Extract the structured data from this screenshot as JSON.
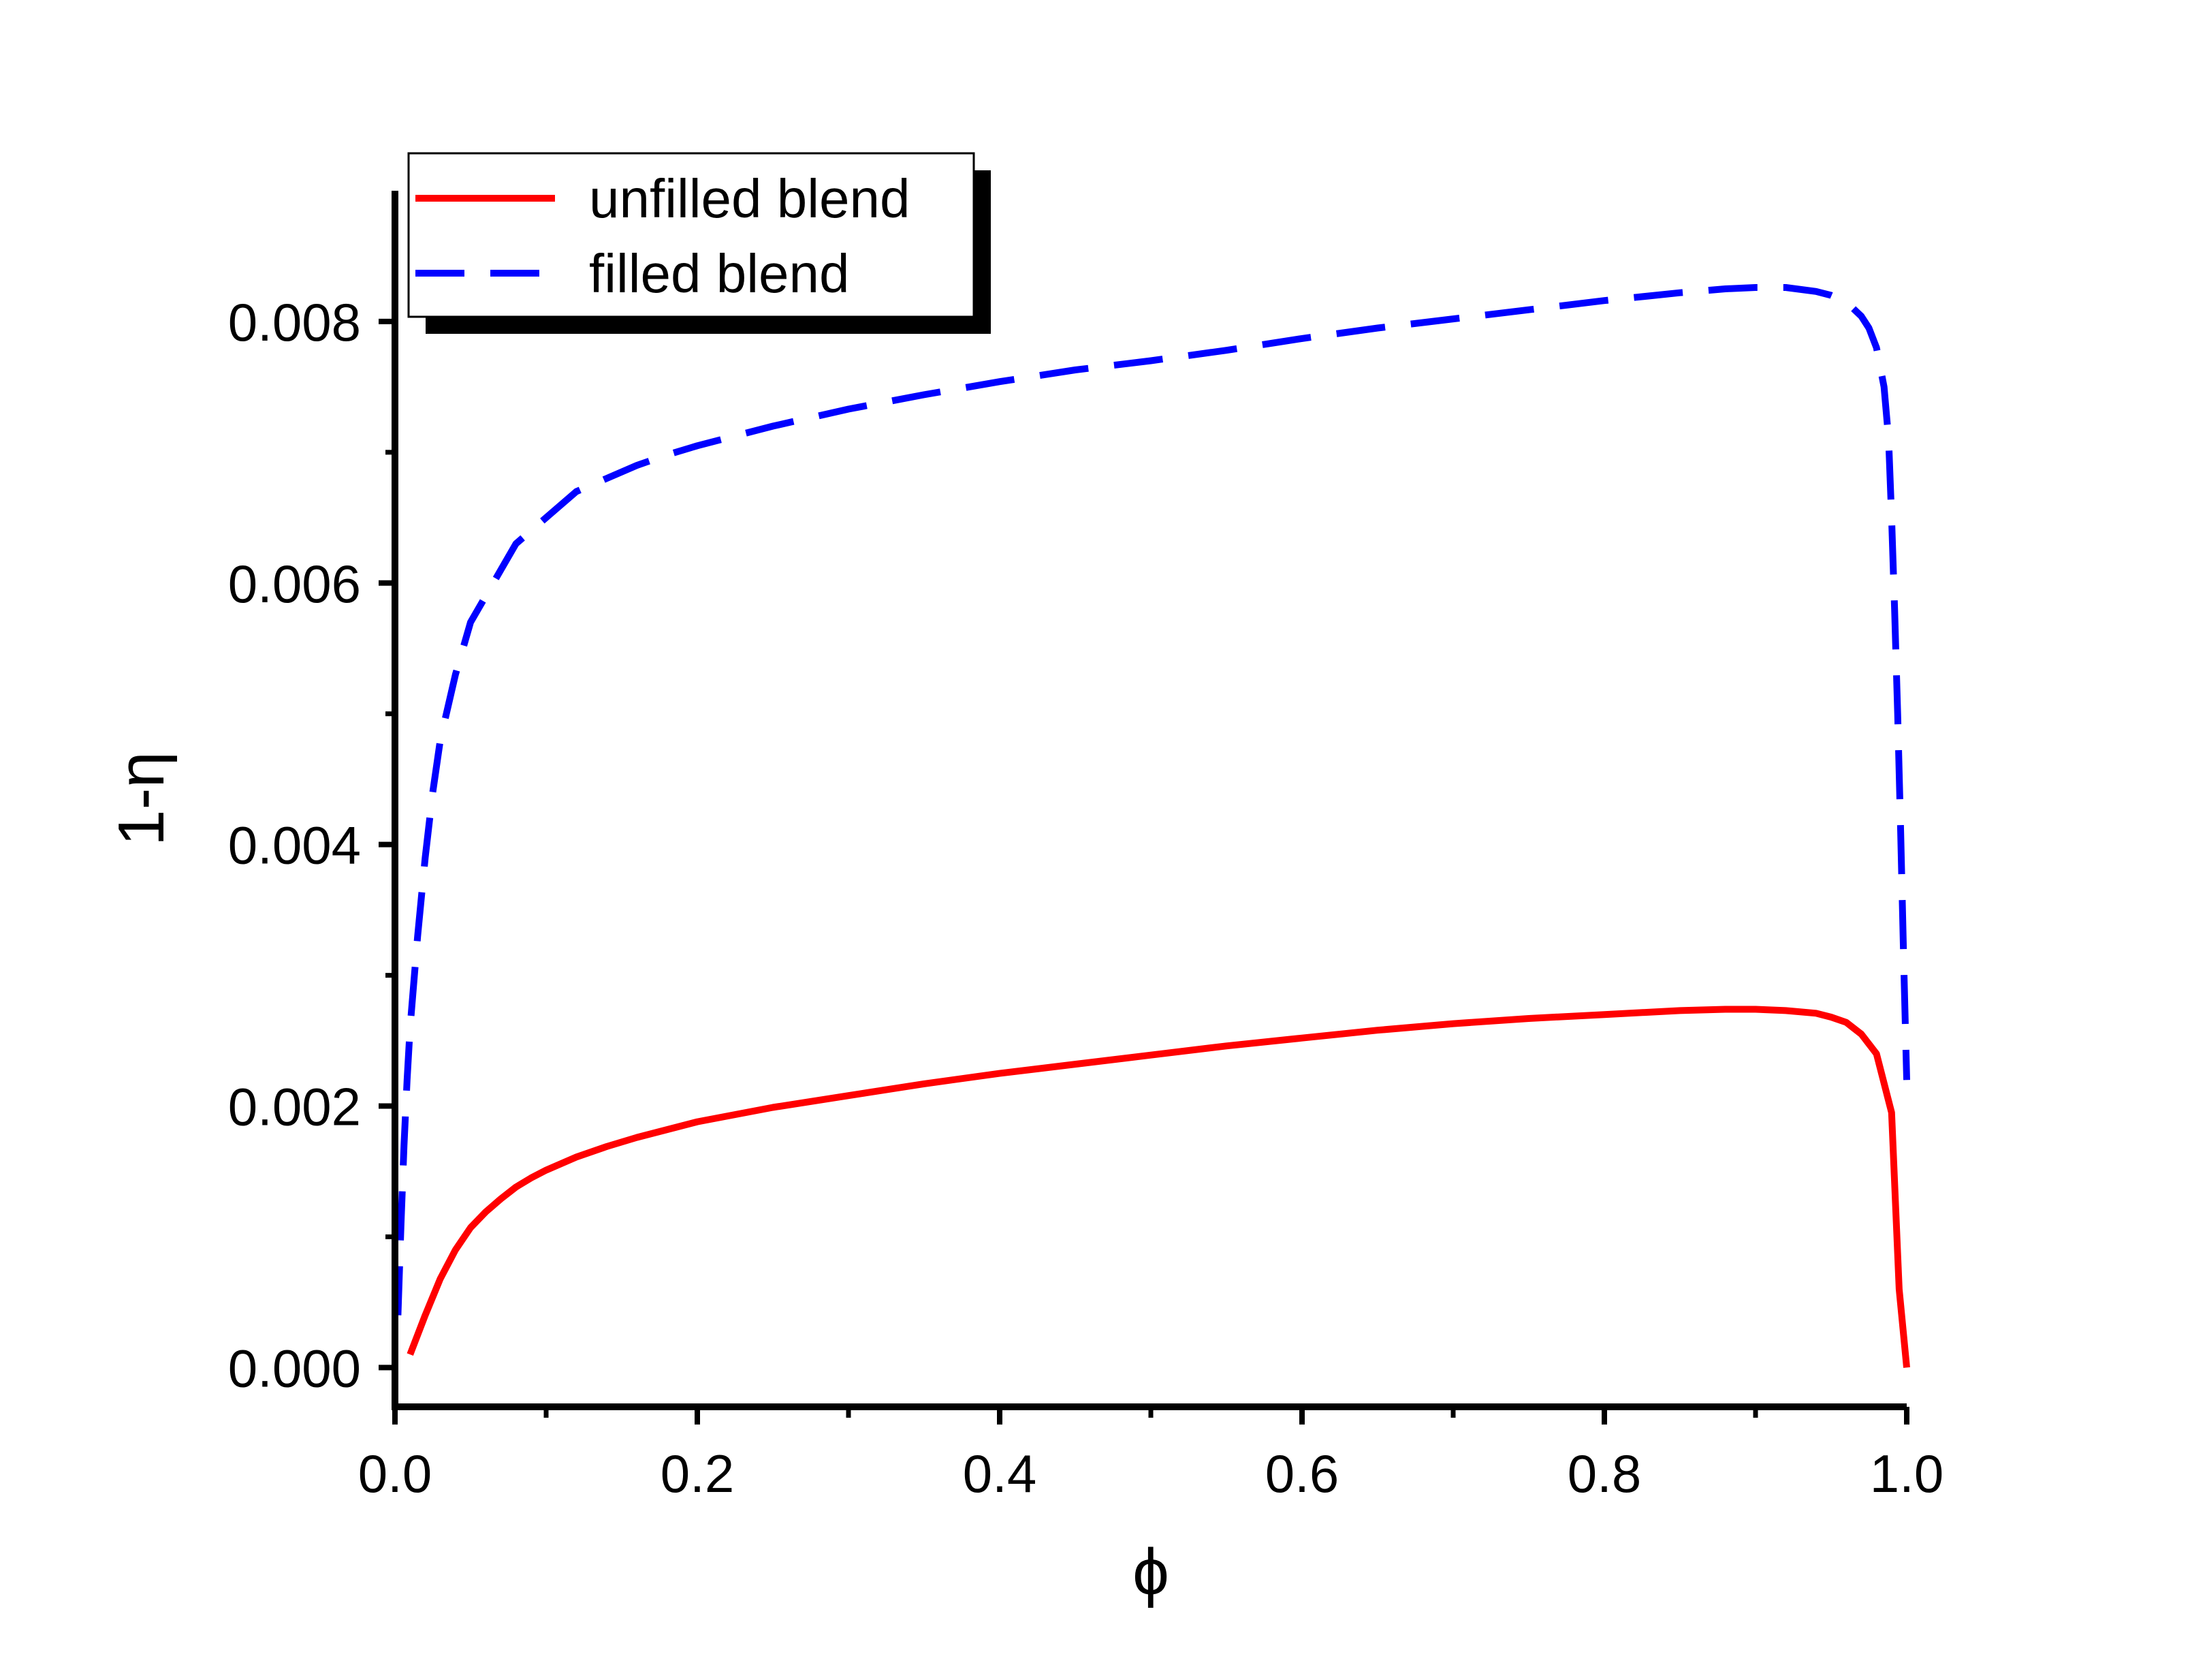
{
  "chart_data": {
    "type": "line",
    "title": "",
    "xlabel": "ϕ",
    "ylabel": "1-η",
    "xlim": [
      0.0,
      1.0
    ],
    "ylim": [
      -0.0003,
      0.009
    ],
    "xticks": [
      0.0,
      0.2,
      0.4,
      0.6,
      0.8,
      1.0
    ],
    "xtick_labels": [
      "0.0",
      "0.2",
      "0.4",
      "0.6",
      "0.8",
      "1.0"
    ],
    "yticks": [
      0.0,
      0.002,
      0.004,
      0.006,
      0.008
    ],
    "ytick_labels": [
      "0.000",
      "0.002",
      "0.004",
      "0.006",
      "0.008"
    ],
    "grid": false,
    "legend_position": "top-left",
    "series": [
      {
        "name": "unfilled blend",
        "color": "#ff0000",
        "style": "solid",
        "x": [
          0.01,
          0.02,
          0.03,
          0.04,
          0.05,
          0.06,
          0.07,
          0.08,
          0.09,
          0.1,
          0.12,
          0.14,
          0.16,
          0.18,
          0.2,
          0.25,
          0.3,
          0.35,
          0.4,
          0.45,
          0.5,
          0.55,
          0.6,
          0.65,
          0.7,
          0.75,
          0.8,
          0.85,
          0.88,
          0.9,
          0.92,
          0.94,
          0.95,
          0.96,
          0.97,
          0.98,
          0.99,
          0.995,
          1.0
        ],
        "y": [
          0.0001,
          0.0004,
          0.00068,
          0.0009,
          0.00107,
          0.00119,
          0.00129,
          0.00138,
          0.00145,
          0.00151,
          0.00161,
          0.00169,
          0.00176,
          0.00182,
          0.00188,
          0.00199,
          0.00208,
          0.00217,
          0.00225,
          0.00232,
          0.00239,
          0.00246,
          0.00252,
          0.00258,
          0.00263,
          0.00267,
          0.0027,
          0.00273,
          0.00274,
          0.00274,
          0.00273,
          0.00271,
          0.00268,
          0.00264,
          0.00255,
          0.0024,
          0.00195,
          0.0006,
          0.0
        ]
      },
      {
        "name": "filled blend",
        "color": "#0000ff",
        "style": "dashed",
        "x": [
          0.002,
          0.004,
          0.006,
          0.008,
          0.01,
          0.015,
          0.02,
          0.025,
          0.03,
          0.04,
          0.05,
          0.06,
          0.07,
          0.08,
          0.09,
          0.1,
          0.12,
          0.14,
          0.16,
          0.18,
          0.2,
          0.25,
          0.3,
          0.35,
          0.4,
          0.45,
          0.5,
          0.55,
          0.6,
          0.65,
          0.7,
          0.75,
          0.8,
          0.85,
          0.88,
          0.9,
          0.92,
          0.94,
          0.95,
          0.96,
          0.97,
          0.975,
          0.98,
          0.985,
          0.988,
          0.99,
          0.992,
          0.994,
          0.996,
          0.998,
          1.0
        ],
        "y": [
          0.0004,
          0.0011,
          0.0017,
          0.0022,
          0.0026,
          0.0033,
          0.0039,
          0.0044,
          0.0048,
          0.0053,
          0.0057,
          0.0059,
          0.0061,
          0.0063,
          0.0064,
          0.0065,
          0.0067,
          0.0068,
          0.0069,
          0.00698,
          0.00705,
          0.0072,
          0.00733,
          0.00744,
          0.00754,
          0.00763,
          0.0077,
          0.00778,
          0.00787,
          0.00795,
          0.00802,
          0.00809,
          0.00816,
          0.00822,
          0.00825,
          0.00826,
          0.00826,
          0.00823,
          0.0082,
          0.00815,
          0.00804,
          0.00795,
          0.0078,
          0.0075,
          0.0071,
          0.0065,
          0.0058,
          0.005,
          0.0041,
          0.0031,
          0.0022
        ]
      }
    ]
  }
}
